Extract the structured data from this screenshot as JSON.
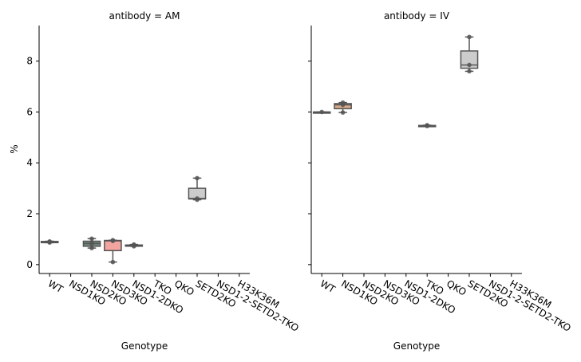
{
  "chart_data": {
    "type": "box",
    "ylabel": "%",
    "xlabel": "Genotype",
    "ylim": [
      -0.35,
      9.4
    ],
    "yticks": [
      0,
      2,
      4,
      6,
      8
    ],
    "categories": [
      "WT",
      "NSD1KO",
      "NSD2KO",
      "NSD3KO",
      "NSD1-2DKO",
      "TKO",
      "QKO",
      "SETD2KO",
      "NSD1-2-SETD2-TKO",
      "H33K36M"
    ],
    "facets": [
      {
        "title": "antibody = AM",
        "boxes": [
          {
            "category": "WT",
            "min": 0.86,
            "q1": 0.87,
            "median": 0.89,
            "q3": 0.91,
            "max": 0.92,
            "color": "#8f8f8f",
            "points": [
              0.87,
              0.89,
              0.91
            ]
          },
          {
            "category": "NSD2KO",
            "min": 0.65,
            "q1": 0.72,
            "median": 0.83,
            "q3": 0.92,
            "max": 1.02,
            "color": "#71897a",
            "points": [
              0.65,
              0.83,
              1.02
            ]
          },
          {
            "category": "NSD3KO",
            "min": 0.1,
            "q1": 0.55,
            "median": 0.93,
            "q3": 0.95,
            "max": 0.96,
            "color": "#f2a59f",
            "points": [
              0.1,
              0.93,
              0.96
            ]
          },
          {
            "category": "NSD1-2DKO",
            "min": 0.72,
            "q1": 0.74,
            "median": 0.76,
            "q3": 0.77,
            "max": 0.79,
            "color": "#8f8f8f",
            "points": [
              0.72,
              0.76,
              0.79
            ]
          },
          {
            "category": "SETD2KO",
            "min": 2.55,
            "q1": 2.58,
            "median": 2.6,
            "q3": 3.0,
            "max": 3.4,
            "color": "#cccccc",
            "points": [
              2.55,
              2.6,
              3.4
            ]
          }
        ]
      },
      {
        "title": "antibody = IV",
        "boxes": [
          {
            "category": "WT",
            "min": 6.0,
            "q1": 6.0,
            "median": 6.0,
            "q3": 6.0,
            "max": 6.0,
            "color": "#8f8f8f",
            "points": [
              6.0
            ]
          },
          {
            "category": "NSD1KO",
            "min": 5.98,
            "q1": 6.13,
            "median": 6.28,
            "q3": 6.33,
            "max": 6.37,
            "color": "#d9ab8a",
            "points": [
              5.98,
              6.28,
              6.37
            ]
          },
          {
            "category": "TKO",
            "min": 5.45,
            "q1": 5.45,
            "median": 5.46,
            "q3": 5.47,
            "max": 5.48,
            "color": "#8f8f8f",
            "points": [
              5.45,
              5.46,
              5.48
            ]
          },
          {
            "category": "SETD2KO",
            "min": 7.6,
            "q1": 7.72,
            "median": 7.85,
            "q3": 8.4,
            "max": 8.95,
            "color": "#cccccc",
            "points": [
              7.6,
              7.85,
              8.95
            ]
          }
        ]
      }
    ]
  }
}
